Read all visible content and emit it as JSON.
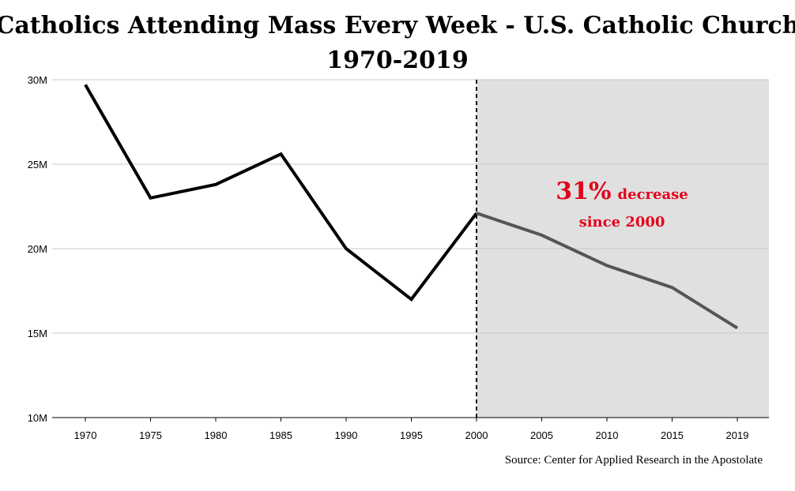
{
  "chart_data": {
    "type": "line",
    "title": "Catholics Attending Mass Every Week - U.S. Catholic Church",
    "subtitle": "1970-2019",
    "xlabel": "",
    "ylabel": "",
    "x": [
      "1970",
      "1975",
      "1980",
      "1985",
      "1990",
      "1995",
      "2000",
      "2005",
      "2010",
      "2015",
      "2019"
    ],
    "series": [
      {
        "values": [
          29.7,
          23.0,
          23.8,
          25.6,
          20.0,
          17.0,
          22.1,
          20.8,
          19.0,
          17.7,
          15.3
        ],
        "color_before": "#000000",
        "color_after": "#555555"
      }
    ],
    "ylim": [
      10,
      30
    ],
    "yticks": [
      10,
      15,
      20,
      25,
      30
    ],
    "ytick_labels": [
      "10M",
      "15M",
      "20M",
      "25M",
      "30M"
    ],
    "grid": true,
    "highlight": {
      "from": "2000",
      "to": "2019",
      "color": "#e0e0e0"
    },
    "divider_at": "2000",
    "annotation": {
      "big": "31%",
      "line1": "decrease",
      "line2": "since 2000",
      "color": "#e3001b"
    },
    "source": "Source: Center for Applied Research in the Apostolate"
  }
}
